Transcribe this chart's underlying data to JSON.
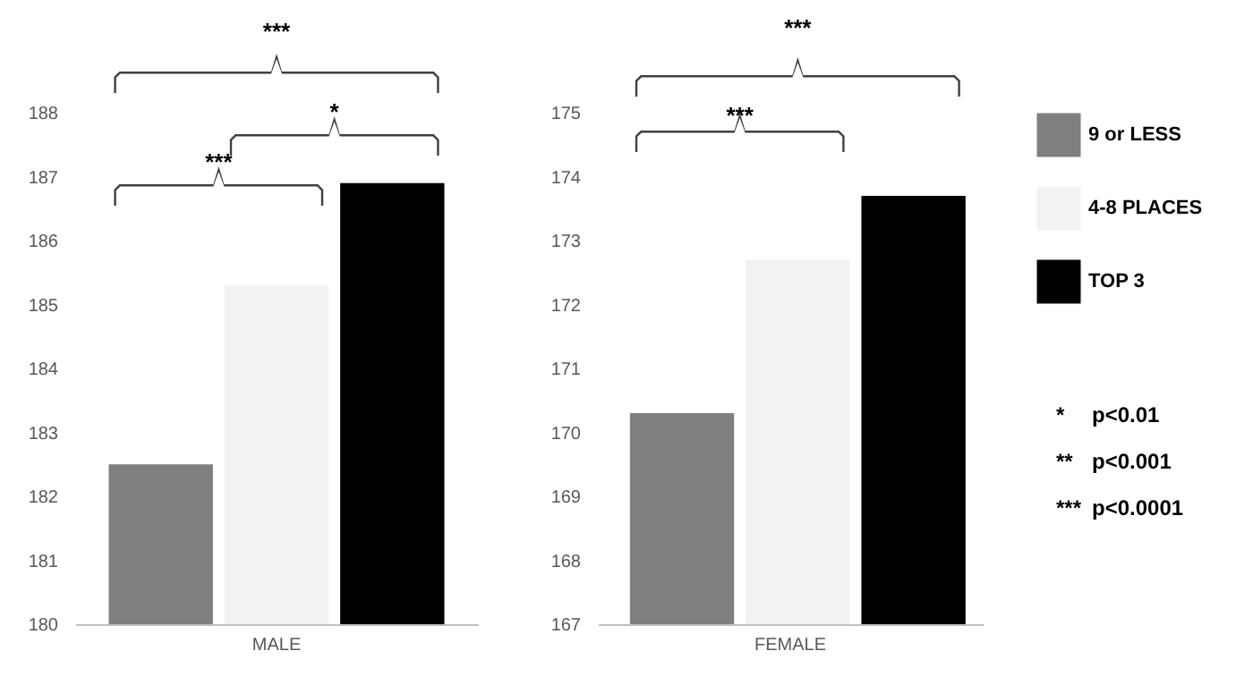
{
  "chart_data": [
    {
      "type": "bar",
      "categories": [
        "MALE"
      ],
      "series": [
        {
          "name": "9 or LESS",
          "color": "#7f7f7f",
          "values": [
            182.5
          ]
        },
        {
          "name": "4-8 PLACES",
          "color": "#f2f2f2",
          "values": [
            185.3
          ]
        },
        {
          "name": "TOP 3",
          "color": "#000000",
          "values": [
            186.9
          ]
        }
      ],
      "ylim": [
        180,
        188
      ],
      "yticks": [
        180,
        181,
        182,
        183,
        184,
        185,
        186,
        187,
        188
      ],
      "grid": false,
      "legend": "right",
      "annotations": [
        "***",
        "*",
        "***"
      ]
    },
    {
      "type": "bar",
      "categories": [
        "FEMALE"
      ],
      "series": [
        {
          "name": "9 or LESS",
          "color": "#7f7f7f",
          "values": [
            170.3
          ]
        },
        {
          "name": "4-8 PLACES",
          "color": "#f2f2f2",
          "values": [
            172.7
          ]
        },
        {
          "name": "TOP 3",
          "color": "#000000",
          "values": [
            173.7
          ]
        }
      ],
      "ylim": [
        167,
        175
      ],
      "yticks": [
        167,
        168,
        169,
        170,
        171,
        172,
        173,
        174,
        175
      ],
      "grid": false,
      "legend": "right",
      "annotations": [
        "***",
        "***",
        "*\tp<0.01",
        "**\tp<0.001",
        "***\tp<0.0001"
      ]
    }
  ]
}
